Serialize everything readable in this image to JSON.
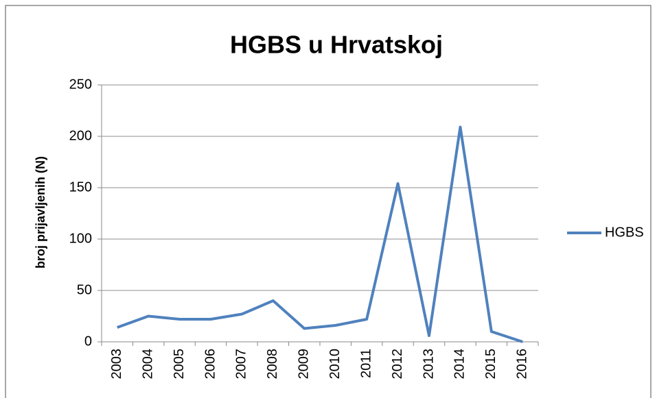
{
  "chart_data": {
    "type": "line",
    "title": "HGBS u Hrvatskoj",
    "y_label": "broj prijavljenih (N)",
    "categories": [
      "2003",
      "2004",
      "2005",
      "2006",
      "2007",
      "2008",
      "2009",
      "2010",
      "2011",
      "2012",
      "2013",
      "2014",
      "2015",
      "2016"
    ],
    "series": [
      {
        "name": "HGBS",
        "color": "#4f81bd",
        "values": [
          14,
          25,
          22,
          22,
          27,
          40,
          13,
          16,
          22,
          154,
          6,
          209,
          10,
          0
        ]
      }
    ],
    "ylim": [
      0,
      250
    ],
    "yticks": [
      0,
      50,
      100,
      150,
      200,
      250
    ],
    "grid": true,
    "legend": "right"
  }
}
